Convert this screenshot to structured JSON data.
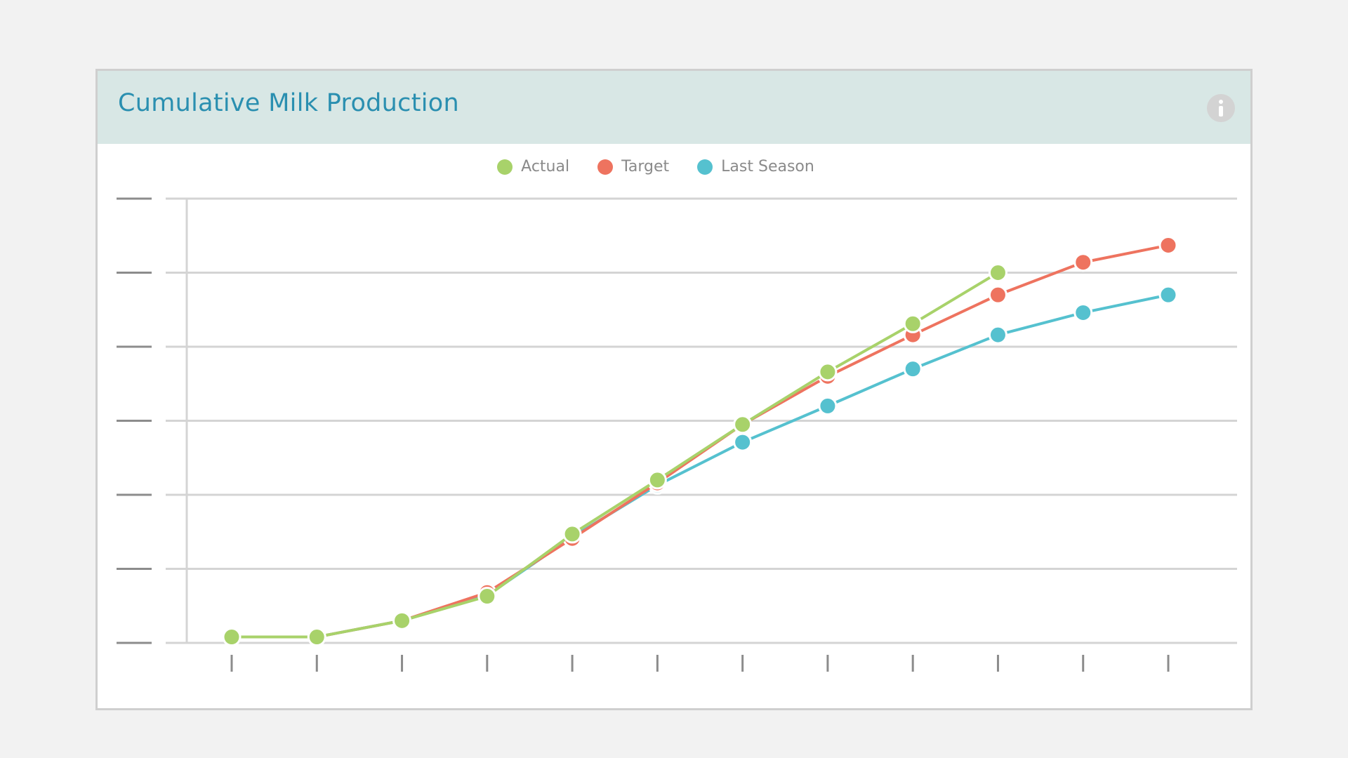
{
  "card": {
    "title": "Cumulative Milk Production",
    "info_icon": "info-icon"
  },
  "colors": {
    "actual": "#a8d26a",
    "target": "#ee735f",
    "last_season": "#55c1cf",
    "header_bg": "#d8e7e5",
    "title": "#2a8fb0",
    "grid": "#d4d4d4",
    "axis_tick": "#8c8c8c"
  },
  "chart_data": {
    "type": "line",
    "title": "Cumulative Milk Production",
    "xlabel": "",
    "ylabel": "",
    "x": [
      1,
      2,
      3,
      4,
      5,
      6,
      7,
      8,
      9,
      10,
      11,
      12
    ],
    "x_tick_labels": [],
    "y_tick_labels": [],
    "ylim": [
      0,
      6
    ],
    "y_gridlines": [
      0,
      1,
      2,
      3,
      4,
      5,
      6
    ],
    "grid": true,
    "legend_position": "top-center",
    "series": [
      {
        "name": "Actual",
        "color_key": "actual",
        "values": [
          0.08,
          0.08,
          0.3,
          0.63,
          1.47,
          2.2,
          2.95,
          3.66,
          4.31,
          5.0,
          null,
          null
        ]
      },
      {
        "name": "Target",
        "color_key": "target",
        "values": [
          0.08,
          0.08,
          0.3,
          0.68,
          1.41,
          2.16,
          2.95,
          3.6,
          4.16,
          4.7,
          5.14,
          5.37
        ]
      },
      {
        "name": "Last Season",
        "color_key": "last_season",
        "values": [
          0.08,
          0.08,
          0.3,
          0.64,
          1.43,
          2.13,
          2.71,
          3.2,
          3.7,
          4.16,
          4.46,
          4.7
        ]
      }
    ]
  }
}
